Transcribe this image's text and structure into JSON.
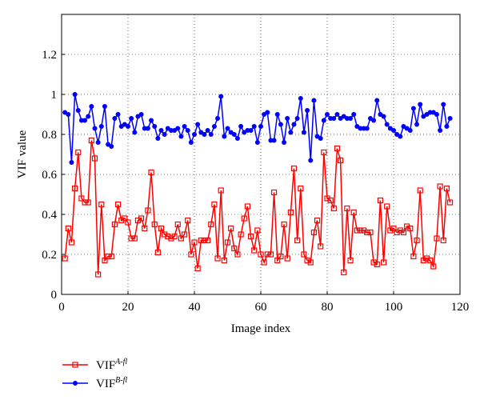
{
  "chart_data": {
    "type": "line",
    "xlabel": "Image index",
    "ylabel": "VIF value",
    "xlim": [
      0,
      120
    ],
    "ylim": [
      0,
      1.4
    ],
    "xticks": [
      0,
      20,
      40,
      60,
      80,
      100,
      120
    ],
    "yticks": [
      0,
      0.2,
      0.4,
      0.6,
      0.8,
      1,
      1.2
    ],
    "grid": true,
    "legend": "lower left",
    "x": [
      1,
      2,
      3,
      4,
      5,
      6,
      7,
      8,
      9,
      10,
      11,
      12,
      13,
      14,
      15,
      16,
      17,
      18,
      19,
      20,
      21,
      22,
      23,
      24,
      25,
      26,
      27,
      28,
      29,
      30,
      31,
      32,
      33,
      34,
      35,
      36,
      37,
      38,
      39,
      40,
      41,
      42,
      43,
      44,
      45,
      46,
      47,
      48,
      49,
      50,
      51,
      52,
      53,
      54,
      55,
      56,
      57,
      58,
      59,
      60,
      61,
      62,
      63,
      64,
      65,
      66,
      67,
      68,
      69,
      70,
      71,
      72,
      73,
      74,
      75,
      76,
      77,
      78,
      79,
      80,
      81,
      82,
      83,
      84,
      85,
      86,
      87,
      88,
      89,
      90,
      91,
      92,
      93,
      94,
      95,
      96,
      97,
      98,
      99,
      100,
      101,
      102,
      103,
      104,
      105,
      106,
      107,
      108,
      109,
      110,
      111,
      112,
      113,
      114,
      115,
      116,
      117
    ],
    "series": [
      {
        "name": "VIF",
        "superscript": "A-fl",
        "color": "#ff0000",
        "marker": "square",
        "values": [
          0.18,
          0.33,
          0.26,
          0.53,
          0.71,
          0.48,
          0.46,
          0.46,
          0.77,
          0.68,
          0.1,
          0.45,
          0.17,
          0.19,
          0.19,
          0.35,
          0.45,
          0.37,
          0.38,
          0.36,
          0.28,
          0.28,
          0.37,
          0.38,
          0.33,
          0.42,
          0.61,
          0.35,
          0.21,
          0.33,
          0.3,
          0.29,
          0.28,
          0.29,
          0.35,
          0.28,
          0.3,
          0.37,
          0.2,
          0.26,
          0.13,
          0.27,
          0.27,
          0.27,
          0.35,
          0.45,
          0.18,
          0.52,
          0.17,
          0.26,
          0.33,
          0.23,
          0.2,
          0.3,
          0.38,
          0.44,
          0.29,
          0.22,
          0.32,
          0.2,
          0.16,
          0.2,
          0.2,
          0.51,
          0.17,
          0.19,
          0.35,
          0.18,
          0.41,
          0.63,
          0.27,
          0.53,
          0.2,
          0.17,
          0.16,
          0.31,
          0.37,
          0.24,
          0.71,
          0.48,
          0.47,
          0.43,
          0.73,
          0.67,
          0.11,
          0.43,
          0.17,
          0.41,
          0.32,
          0.32,
          0.32,
          0.31,
          0.31,
          0.16,
          0.15,
          0.47,
          0.16,
          0.44,
          0.32,
          0.33,
          0.31,
          0.32,
          0.31,
          0.34,
          0.33,
          0.19,
          0.27,
          0.52,
          0.17,
          0.18,
          0.17,
          0.14,
          0.28,
          0.54,
          0.27,
          0.53,
          0.46
        ]
      },
      {
        "name": "VIF",
        "superscript": "B-fl",
        "color": "#0000ff",
        "marker": "circle",
        "values": [
          0.91,
          0.9,
          0.66,
          1.0,
          0.92,
          0.87,
          0.87,
          0.89,
          0.94,
          0.83,
          0.76,
          0.84,
          0.94,
          0.75,
          0.74,
          0.88,
          0.9,
          0.84,
          0.85,
          0.84,
          0.88,
          0.81,
          0.89,
          0.9,
          0.83,
          0.83,
          0.87,
          0.84,
          0.78,
          0.82,
          0.8,
          0.83,
          0.82,
          0.82,
          0.83,
          0.79,
          0.84,
          0.82,
          0.76,
          0.8,
          0.85,
          0.81,
          0.8,
          0.82,
          0.8,
          0.84,
          0.88,
          0.99,
          0.79,
          0.83,
          0.81,
          0.8,
          0.78,
          0.84,
          0.81,
          0.82,
          0.82,
          0.84,
          0.76,
          0.84,
          0.9,
          0.91,
          0.77,
          0.77,
          0.9,
          0.85,
          0.76,
          0.88,
          0.81,
          0.85,
          0.88,
          0.98,
          0.81,
          0.92,
          0.67,
          0.97,
          0.79,
          0.78,
          0.87,
          0.9,
          0.88,
          0.88,
          0.9,
          0.88,
          0.89,
          0.88,
          0.88,
          0.9,
          0.84,
          0.83,
          0.83,
          0.83,
          0.88,
          0.87,
          0.97,
          0.9,
          0.89,
          0.85,
          0.83,
          0.82,
          0.8,
          0.79,
          0.84,
          0.83,
          0.82,
          0.93,
          0.85,
          0.95,
          0.89,
          0.9,
          0.91,
          0.91,
          0.9,
          0.82,
          0.95,
          0.84,
          0.88
        ]
      }
    ]
  }
}
